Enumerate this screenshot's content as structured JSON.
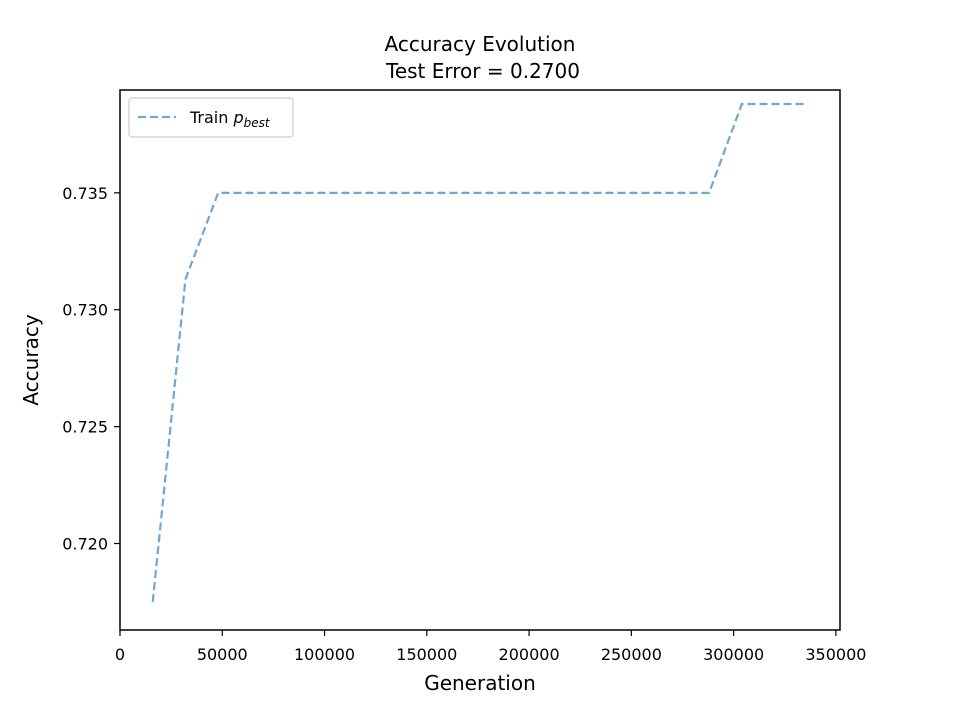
{
  "chart_data": {
    "type": "line",
    "title": "Accuracy Evolution",
    "subtitle": "Test Error = 0.2700",
    "xlabel": "Generation",
    "ylabel": "Accuracy",
    "xlim": [
      0,
      352000
    ],
    "ylim": [
      0.7163,
      0.7394
    ],
    "xticks": [
      0,
      50000,
      100000,
      150000,
      200000,
      250000,
      300000,
      350000
    ],
    "xtick_labels": [
      "0",
      "50000",
      "100000",
      "150000",
      "200000",
      "250000",
      "300000",
      "350000"
    ],
    "yticks": [
      0.72,
      0.725,
      0.73,
      0.735
    ],
    "ytick_labels": [
      "0.720",
      "0.725",
      "0.730",
      "0.735"
    ],
    "grid": false,
    "legend_position": "top-left",
    "series": [
      {
        "name_main": "Train ",
        "name_var": "p",
        "name_sub": "best",
        "color": "#6fa8cf",
        "line_style": "dashed",
        "x": [
          16000,
          32000,
          48000,
          288000,
          304000,
          336000
        ],
        "y": [
          0.7175,
          0.7313,
          0.735,
          0.735,
          0.7388,
          0.7388
        ]
      }
    ]
  }
}
